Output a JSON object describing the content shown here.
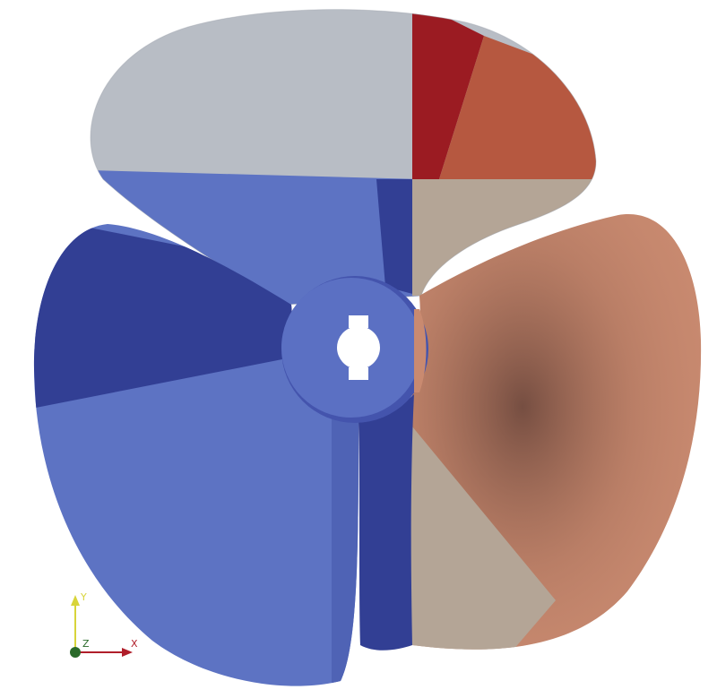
{
  "scene": {
    "subject": "propeller",
    "background_color": "#ffffff",
    "colors": {
      "deep_blue": "#323f94",
      "mid_blue": "#4454ad",
      "light_blue": "#5d73c3",
      "pale_gray": "#b8bdc5",
      "dark_red": "#9b1b22",
      "orange_red": "#b65840",
      "tan": "#b4a596",
      "salmon": "#c98a70",
      "hub_blue": "#5b70c3"
    }
  },
  "orientation_axes": {
    "x_label": "X",
    "y_label": "Y",
    "z_label": "Z",
    "x_color": "#b01e2a",
    "y_color": "#d8d43a",
    "z_color": "#2a6a2a"
  }
}
